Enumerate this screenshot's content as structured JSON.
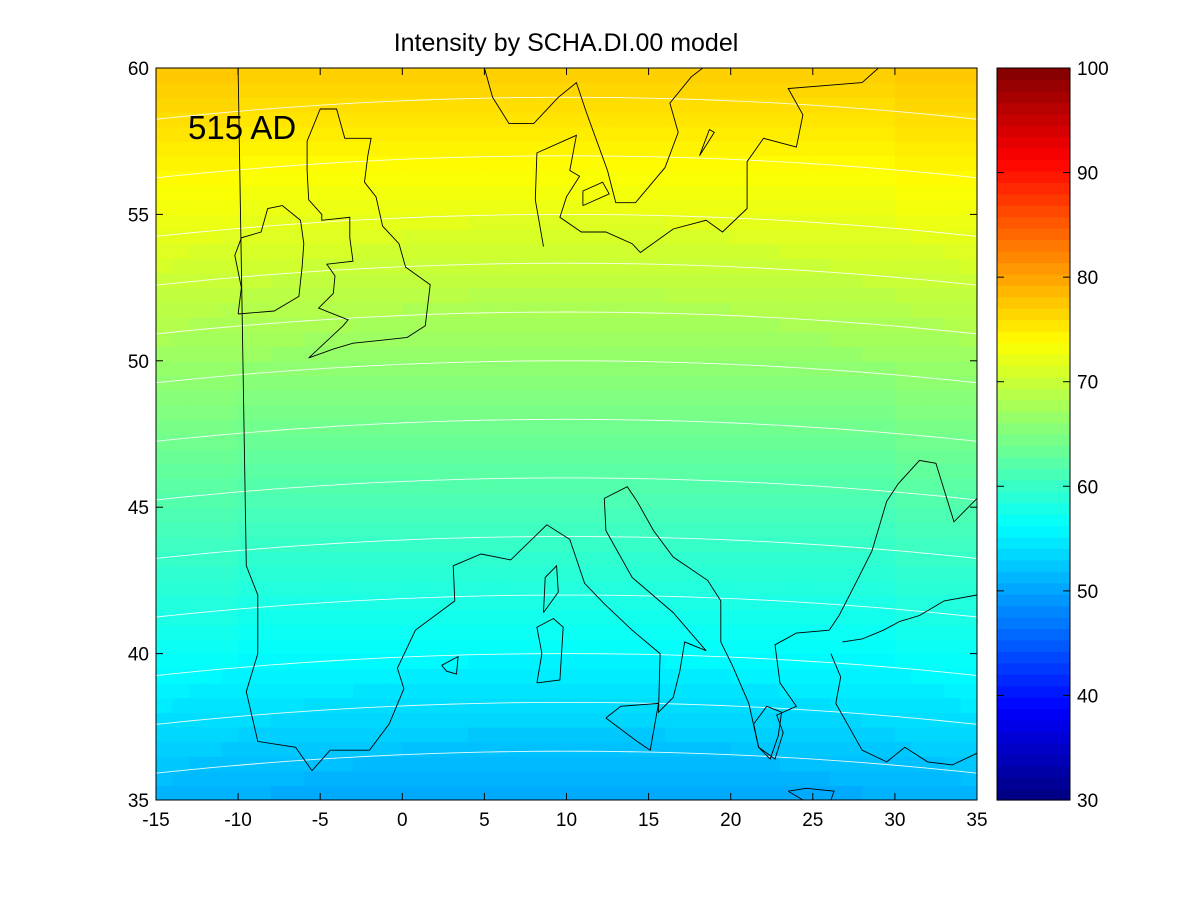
{
  "chart_data": {
    "type": "heatmap",
    "title": "Intensity by SCHA.DI.00 model",
    "annotation": "515 AD",
    "xlim": [
      -15,
      35
    ],
    "ylim": [
      35,
      60
    ],
    "x_ticks": [
      "-15",
      "-10",
      "-5",
      "0",
      "5",
      "10",
      "15",
      "20",
      "25",
      "30",
      "35"
    ],
    "y_ticks": [
      "35",
      "40",
      "45",
      "50",
      "55",
      "60"
    ],
    "colorbar": {
      "colormap": "jet",
      "range": [
        30,
        100
      ],
      "ticks": [
        "30",
        "40",
        "50",
        "60",
        "70",
        "80",
        "90",
        "100"
      ]
    },
    "field_description": "intensity increases northward, contours bowed toward the south",
    "contour_values": [
      50,
      52,
      54,
      56,
      58,
      60,
      62,
      64,
      66,
      68,
      70,
      72,
      74,
      76,
      78
    ],
    "intensity_profile": {
      "center_lon": 10,
      "lat": [
        35,
        40,
        45,
        50,
        55,
        60
      ],
      "value_at_center": [
        50,
        56,
        61,
        66,
        72,
        77
      ]
    },
    "gridlines": false,
    "coastlines": true
  }
}
